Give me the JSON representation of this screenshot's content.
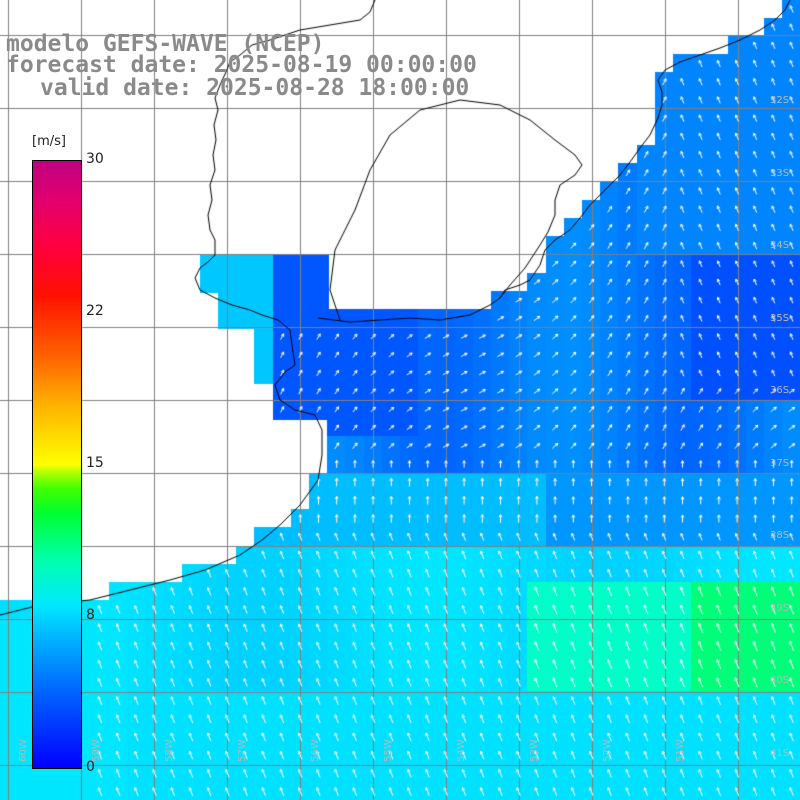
{
  "title": {
    "line1": "modelo GEFS-WAVE (NCEP)",
    "line2": "forecast date: 2025-08-19 00:00:00",
    "line3": "valid date: 2025-08-28 18:00:00"
  },
  "colorbar": {
    "unit": "[m/s]",
    "min": 0,
    "max": 30,
    "ticks": [
      "30",
      "22",
      "15",
      "8",
      "0"
    ],
    "tick_values": [
      30,
      22,
      15,
      8,
      0
    ]
  },
  "grid": {
    "lat_labels": [
      "32S",
      "33S",
      "34S",
      "35S",
      "36S",
      "37S",
      "38S",
      "39S",
      "40S",
      "41S"
    ],
    "lon_labels": [
      "60W",
      "59W",
      "58W",
      "57W",
      "56W",
      "55W",
      "54W",
      "53W",
      "52W",
      "51W"
    ]
  },
  "colors": {
    "land": "#ffffff",
    "coast": "#000000",
    "grid": "#808080",
    "arrow": "#ffffff",
    "low_wind": "#0040ff",
    "mid_wind": "#00e8ff",
    "high_wind": "#00ff60"
  }
}
